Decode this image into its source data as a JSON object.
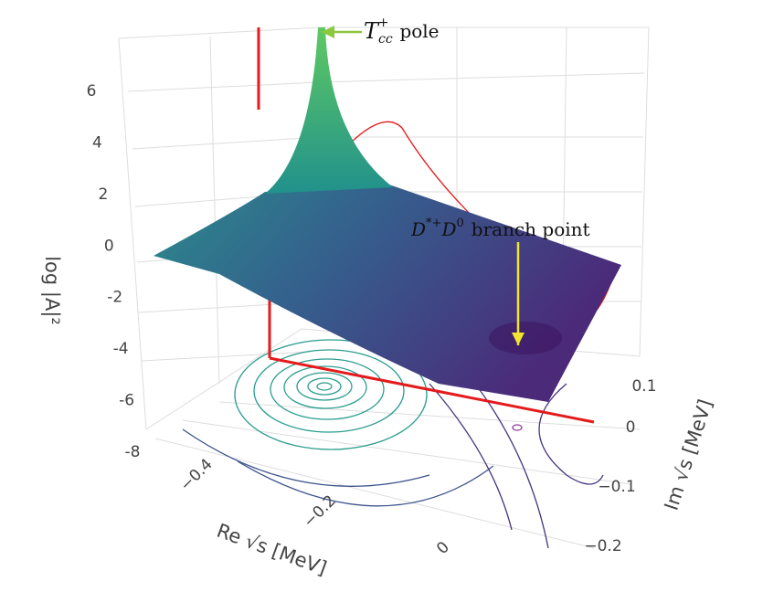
{
  "chart_data": {
    "type": "surface",
    "zaxis_title": "log |A|²",
    "xaxis_title": "Re √s [MeV]",
    "yaxis_title": "Im √s [MeV]",
    "zticks": [
      -8,
      -6,
      -4,
      -2,
      0,
      2,
      4,
      6
    ],
    "xticks": [
      {
        "value": -0.4,
        "label": "−0.4"
      },
      {
        "value": -0.2,
        "label": "−0.2"
      },
      0
    ],
    "yticks": [
      0.1,
      0,
      {
        "value": -0.1,
        "label": "−0.1"
      },
      {
        "value": -0.2,
        "label": "−0.2"
      }
    ],
    "annotations": [
      {
        "parts": [
          "T",
          "cc",
          "+",
          "pole"
        ],
        "color": "#8dc63f"
      },
      {
        "parts": [
          "D",
          "*+",
          "D",
          "0",
          "branch point"
        ],
        "color": "#f2e530"
      }
    ]
  }
}
